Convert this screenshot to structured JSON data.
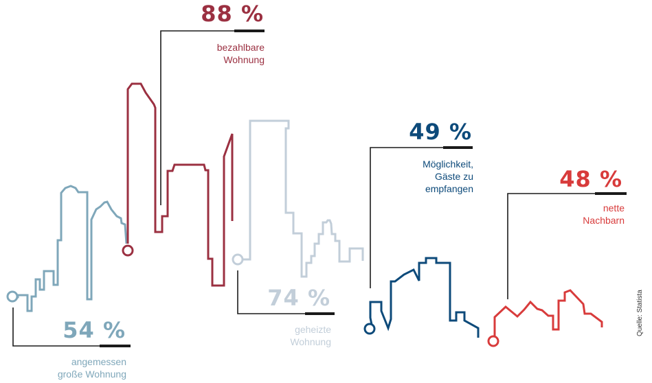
{
  "chart_data": {
    "type": "infographic-percentages",
    "title": "",
    "categories": [
      "angemessen große Wohnung",
      "bezahlbare Wohnung",
      "geheizte Wohnung",
      "Möglichkeit, Gäste zu empfangen",
      "nette Nachbarn"
    ],
    "series": [
      {
        "values": [
          54,
          88,
          74,
          49,
          48
        ],
        "percent_labels": [
          "54 %",
          "88 %",
          "74 %",
          "49 %",
          "48 %"
        ],
        "label_lines": [
          [
            "angemessen",
            "große Wohnung"
          ],
          [
            "bezahlbare",
            "Wohnung"
          ],
          [
            "geheizte",
            "Wohnung"
          ],
          [
            "Möglichkeit,",
            "Gäste zu",
            "empfangen"
          ],
          [
            "nette",
            "Nachbarn"
          ]
        ],
        "colors": [
          "#7fa7ba",
          "#9b3041",
          "#c2ced9",
          "#0d4a7a",
          "#d83b3b"
        ]
      }
    ],
    "source": "Quelle: Statista"
  }
}
